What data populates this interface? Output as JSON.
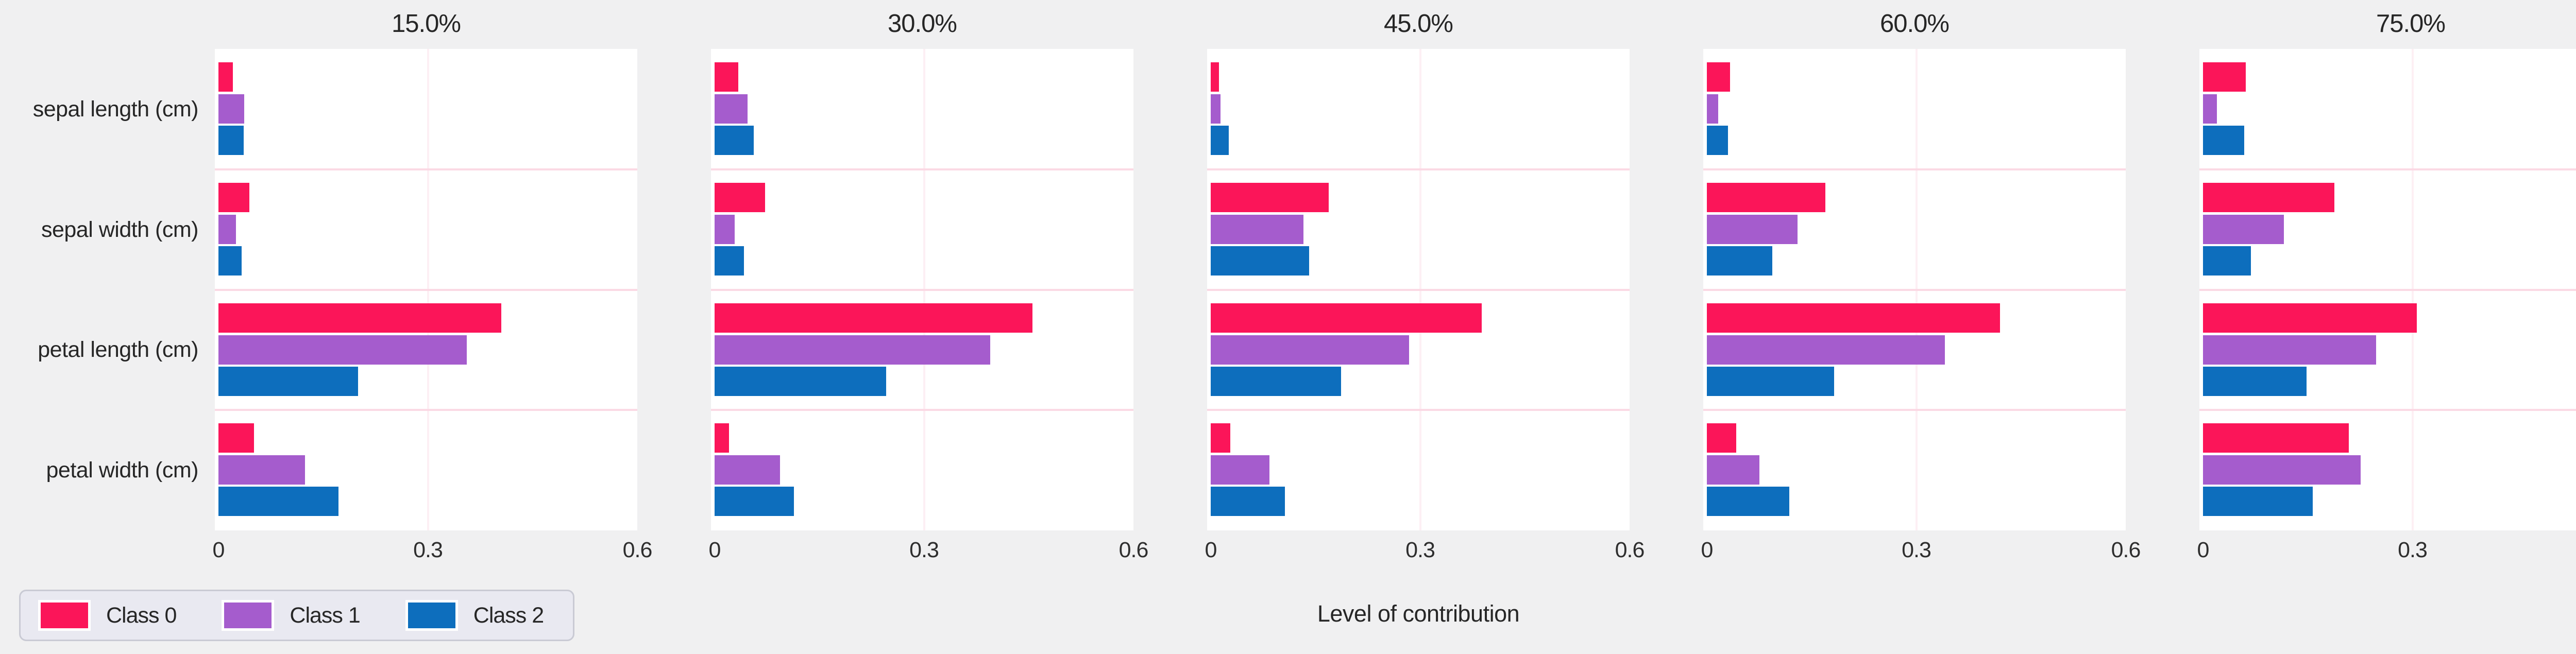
{
  "chart_data": {
    "type": "bar",
    "orientation": "horizontal",
    "xlabel": "Level of contribution",
    "panel_titles": [
      "15.0%",
      "30.0%",
      "45.0%",
      "60.0%",
      "75.0%"
    ],
    "categories": [
      "sepal length (cm)",
      "sepal width (cm)",
      "petal length (cm)",
      "petal width (cm)"
    ],
    "series_names": [
      "Class 0",
      "Class 1",
      "Class 2"
    ],
    "x_ticks": [
      "0",
      "0.3",
      "0.6"
    ],
    "x_tick_values": [
      0,
      0.3,
      0.6
    ],
    "xlim": [
      0,
      0.6
    ],
    "grid": "vertical gridline at 0.3; pink horizontal separators between categories",
    "legend_position": "lower-left",
    "panels": [
      {
        "title": "15.0%",
        "series": [
          {
            "name": "Class 0",
            "values": [
              0.021,
              0.044,
              0.405,
              0.051
            ]
          },
          {
            "name": "Class 1",
            "values": [
              0.037,
              0.025,
              0.356,
              0.124
            ]
          },
          {
            "name": "Class 2",
            "values": [
              0.036,
              0.033,
              0.2,
              0.172
            ]
          }
        ]
      },
      {
        "title": "30.0%",
        "series": [
          {
            "name": "Class 0",
            "values": [
              0.034,
              0.072,
              0.455,
              0.021
            ]
          },
          {
            "name": "Class 1",
            "values": [
              0.047,
              0.029,
              0.395,
              0.094
            ]
          },
          {
            "name": "Class 2",
            "values": [
              0.056,
              0.042,
              0.246,
              0.114
            ]
          }
        ]
      },
      {
        "title": "45.0%",
        "series": [
          {
            "name": "Class 0",
            "values": [
              0.012,
              0.169,
              0.388,
              0.028
            ]
          },
          {
            "name": "Class 1",
            "values": [
              0.014,
              0.133,
              0.284,
              0.084
            ]
          },
          {
            "name": "Class 2",
            "values": [
              0.026,
              0.141,
              0.187,
              0.106
            ]
          }
        ]
      },
      {
        "title": "60.0%",
        "series": [
          {
            "name": "Class 0",
            "values": [
              0.033,
              0.17,
              0.42,
              0.042
            ]
          },
          {
            "name": "Class 1",
            "values": [
              0.016,
              0.13,
              0.341,
              0.075
            ]
          },
          {
            "name": "Class 2",
            "values": [
              0.03,
              0.094,
              0.182,
              0.118
            ]
          }
        ]
      },
      {
        "title": "75.0%",
        "series": [
          {
            "name": "Class 0",
            "values": [
              0.061,
              0.188,
              0.306,
              0.209
            ]
          },
          {
            "name": "Class 1",
            "values": [
              0.02,
              0.116,
              0.248,
              0.226
            ]
          },
          {
            "name": "Class 2",
            "values": [
              0.059,
              0.069,
              0.148,
              0.157
            ]
          }
        ]
      }
    ],
    "colors": {
      "class0": "#fb1559",
      "class1": "#a55ccd",
      "class2": "#0d6ebd",
      "figure_bg": "#f0f0f1",
      "axes_bg": "#ffffff",
      "vgrid": "#fdeff4",
      "row_separator": "#fbd9e4",
      "legend_bg": "#e9e9f1",
      "legend_border": "#c9cad4",
      "text": "#262626"
    }
  }
}
